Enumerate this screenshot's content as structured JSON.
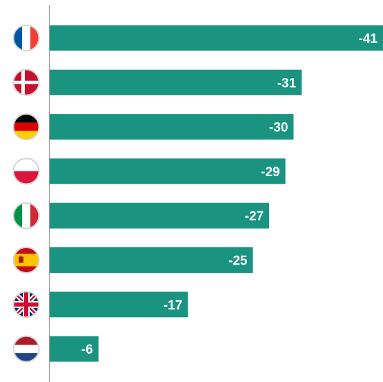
{
  "chart_data": {
    "type": "bar",
    "orientation": "horizontal",
    "categories": [
      "France",
      "Denmark",
      "Germany",
      "Poland",
      "Italy",
      "Spain",
      "United Kingdom",
      "Netherlands"
    ],
    "values": [
      -41,
      -31,
      -30,
      -29,
      -27,
      -25,
      -17,
      -6
    ],
    "labels": [
      "-41",
      "-31",
      "-30",
      "-29",
      "-27",
      "-25",
      "-17",
      "-6"
    ],
    "category_icons": [
      "france-flag-icon",
      "denmark-flag-icon",
      "germany-flag-icon",
      "poland-flag-icon",
      "italy-flag-icon",
      "spain-flag-icon",
      "uk-flag-icon",
      "netherlands-flag-icon"
    ],
    "title": "",
    "xlabel": "",
    "ylabel": "",
    "xlim": [
      0,
      -41
    ],
    "grid": false,
    "legend": "none",
    "bar_color": "#1a9480",
    "label_color": "#ffffff",
    "axis_color": "#999999"
  }
}
